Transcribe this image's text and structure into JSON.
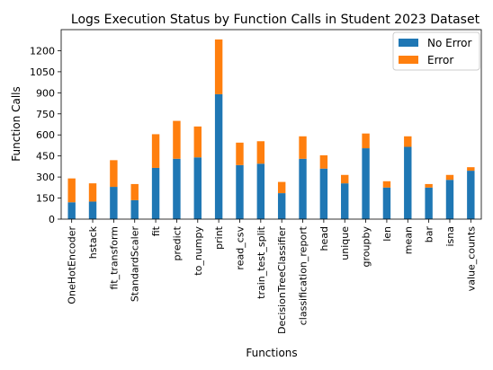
{
  "chart_data": {
    "type": "bar",
    "stacked": true,
    "title": "Logs Execution Status by Function Calls in Student 2023 Dataset",
    "xlabel": "Functions",
    "ylabel": "Function Calls",
    "ylim": [
      0,
      1350
    ],
    "yticks": [
      0,
      150,
      300,
      450,
      600,
      750,
      900,
      1050,
      1200
    ],
    "grid": false,
    "legend_position": "top-right",
    "categories": [
      "OneHotEncoder",
      "hstack",
      "fit_transform",
      "StandardScaler",
      "fit",
      "predict",
      "to_numpy",
      "print",
      "read_csv",
      "train_test_split",
      "DecisionTreeClassifier",
      "classification_report",
      "head",
      "unique",
      "groupby",
      "len",
      "mean",
      "bar",
      "isna",
      "value_counts"
    ],
    "series": [
      {
        "name": "No Error",
        "color": "#1f77b4",
        "values": [
          120,
          125,
          230,
          135,
          365,
          430,
          440,
          890,
          385,
          395,
          185,
          430,
          360,
          255,
          505,
          225,
          515,
          225,
          280,
          345
        ]
      },
      {
        "name": "Error",
        "color": "#ff7f0e",
        "values": [
          170,
          130,
          190,
          115,
          240,
          270,
          220,
          390,
          160,
          160,
          80,
          160,
          95,
          60,
          105,
          45,
          75,
          25,
          35,
          25
        ]
      }
    ]
  }
}
